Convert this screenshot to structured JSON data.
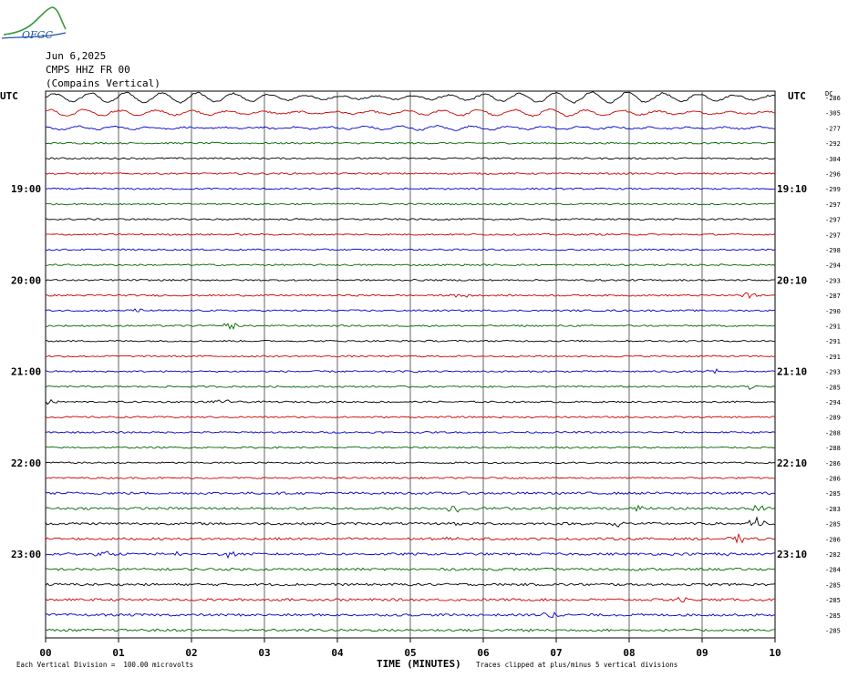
{
  "header": {
    "logo_text": "OFGC",
    "date": "Jun 6,2025",
    "station": "CMPS HHZ FR 00",
    "location": "(Compains Vertical)"
  },
  "chart_data": {
    "type": "line",
    "title": "",
    "xlabel": "TIME (MINUTES)",
    "xlim": [
      0,
      10
    ],
    "x_ticks": [
      "00",
      "01",
      "02",
      "03",
      "04",
      "05",
      "06",
      "07",
      "08",
      "09",
      "10"
    ],
    "left_axis_label": "UTC",
    "right_axis_label": "UTC",
    "dc_label": "DC",
    "left_time_labels": [
      {
        "row": 6,
        "label": "19:00"
      },
      {
        "row": 12,
        "label": "20:00"
      },
      {
        "row": 18,
        "label": "21:00"
      },
      {
        "row": 24,
        "label": "22:00"
      },
      {
        "row": 30,
        "label": "23:00"
      }
    ],
    "right_time_labels": [
      {
        "row": 6,
        "label": "19:10"
      },
      {
        "row": 12,
        "label": "20:10"
      },
      {
        "row": 18,
        "label": "21:10"
      },
      {
        "row": 24,
        "label": "22:10"
      },
      {
        "row": 30,
        "label": "23:10"
      }
    ],
    "trace_colors": [
      "#000000",
      "#cc0000",
      "#0000cc",
      "#006600"
    ],
    "dc_offsets": [
      -286,
      -305,
      -277,
      -292,
      -304,
      -296,
      -299,
      -297,
      -297,
      -297,
      -298,
      -294,
      -293,
      -287,
      -290,
      -291,
      -291,
      -291,
      -293,
      -285,
      -294,
      -289,
      -288,
      -288,
      -286,
      -286,
      -285,
      -283,
      -285,
      -286,
      -282,
      -284,
      -285,
      -285,
      -285,
      -285
    ],
    "microseismic_rows": [
      0,
      1,
      2
    ],
    "events": [
      {
        "row": 1,
        "minute": 1.0,
        "amp": 2
      },
      {
        "row": 13,
        "minute": 5.7,
        "amp": 3
      },
      {
        "row": 13,
        "minute": 9.6,
        "amp": 6
      },
      {
        "row": 14,
        "minute": 1.2,
        "amp": 3
      },
      {
        "row": 15,
        "minute": 2.5,
        "amp": 6
      },
      {
        "row": 18,
        "minute": 9.2,
        "amp": 3
      },
      {
        "row": 19,
        "minute": 9.65,
        "amp": 3
      },
      {
        "row": 20,
        "minute": 0.05,
        "amp": 3
      },
      {
        "row": 20,
        "minute": 2.4,
        "amp": 3
      },
      {
        "row": 27,
        "minute": 5.6,
        "amp": 5
      },
      {
        "row": 27,
        "minute": 8.1,
        "amp": 3
      },
      {
        "row": 27,
        "minute": 9.8,
        "amp": 4
      },
      {
        "row": 28,
        "minute": 5.6,
        "amp": 3
      },
      {
        "row": 28,
        "minute": 7.8,
        "amp": 5
      },
      {
        "row": 28,
        "minute": 9.75,
        "amp": 7
      },
      {
        "row": 29,
        "minute": 5.6,
        "amp": 3
      },
      {
        "row": 29,
        "minute": 9.5,
        "amp": 5
      },
      {
        "row": 30,
        "minute": 0.8,
        "amp": 3
      },
      {
        "row": 30,
        "minute": 1.8,
        "amp": 3
      },
      {
        "row": 30,
        "minute": 2.5,
        "amp": 3
      },
      {
        "row": 30,
        "minute": 9.25,
        "amp": 3
      },
      {
        "row": 33,
        "minute": 8.7,
        "amp": 3
      },
      {
        "row": 34,
        "minute": 6.9,
        "amp": 5
      },
      {
        "row": 35,
        "minute": 6.6,
        "amp": 4
      }
    ]
  },
  "footer": {
    "scale_note": "Each Vertical Division =  100.00 microvolts",
    "clip_note": "Traces clipped at plus/minus 5 vertical divisions"
  }
}
